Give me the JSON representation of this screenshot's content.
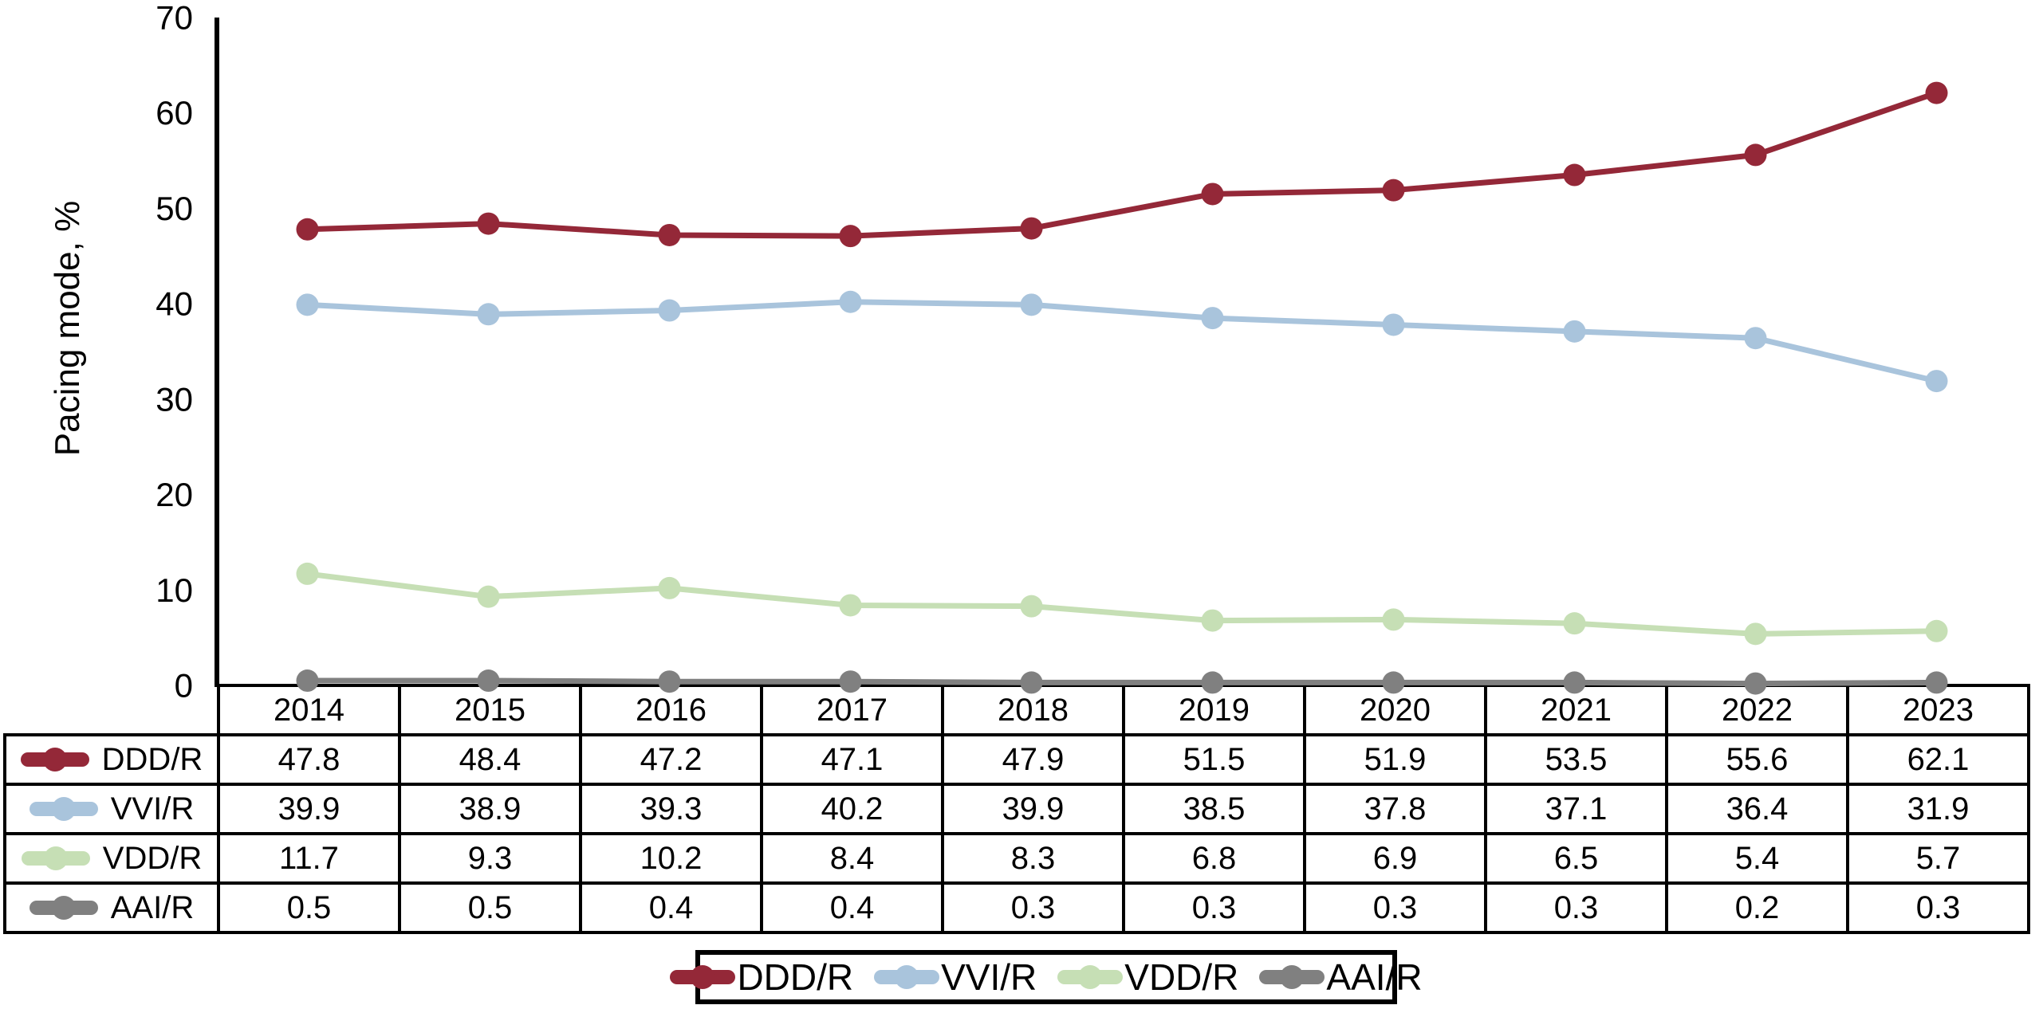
{
  "chart_data": {
    "type": "line",
    "title": "",
    "xlabel": "",
    "ylabel": "Pacing mode, %",
    "ylim": [
      0,
      70
    ],
    "y_ticks": [
      0,
      10,
      20,
      30,
      40,
      50,
      60,
      70
    ],
    "grid": false,
    "legend_position": "bottom",
    "categories": [
      "2014",
      "2015",
      "2016",
      "2017",
      "2018",
      "2019",
      "2020",
      "2021",
      "2022",
      "2023"
    ],
    "series": [
      {
        "name": "DDD/R",
        "color": "#942838",
        "values": [
          47.8,
          48.4,
          47.2,
          47.1,
          47.9,
          51.5,
          51.9,
          53.5,
          55.6,
          62.1
        ]
      },
      {
        "name": "VVI/R",
        "color": "#A9C4DC",
        "values": [
          39.9,
          38.9,
          39.3,
          40.2,
          39.9,
          38.5,
          37.8,
          37.1,
          36.4,
          31.9
        ]
      },
      {
        "name": "VDD/R",
        "color": "#C6DFB5",
        "values": [
          11.7,
          9.3,
          10.2,
          8.4,
          8.3,
          6.8,
          6.9,
          6.5,
          5.4,
          5.7
        ]
      },
      {
        "name": "AAI/R",
        "color": "#808080",
        "values": [
          0.5,
          0.5,
          0.4,
          0.4,
          0.3,
          0.3,
          0.3,
          0.3,
          0.2,
          0.3
        ]
      }
    ],
    "axis_color": "#000000",
    "text_color": "#000000"
  }
}
